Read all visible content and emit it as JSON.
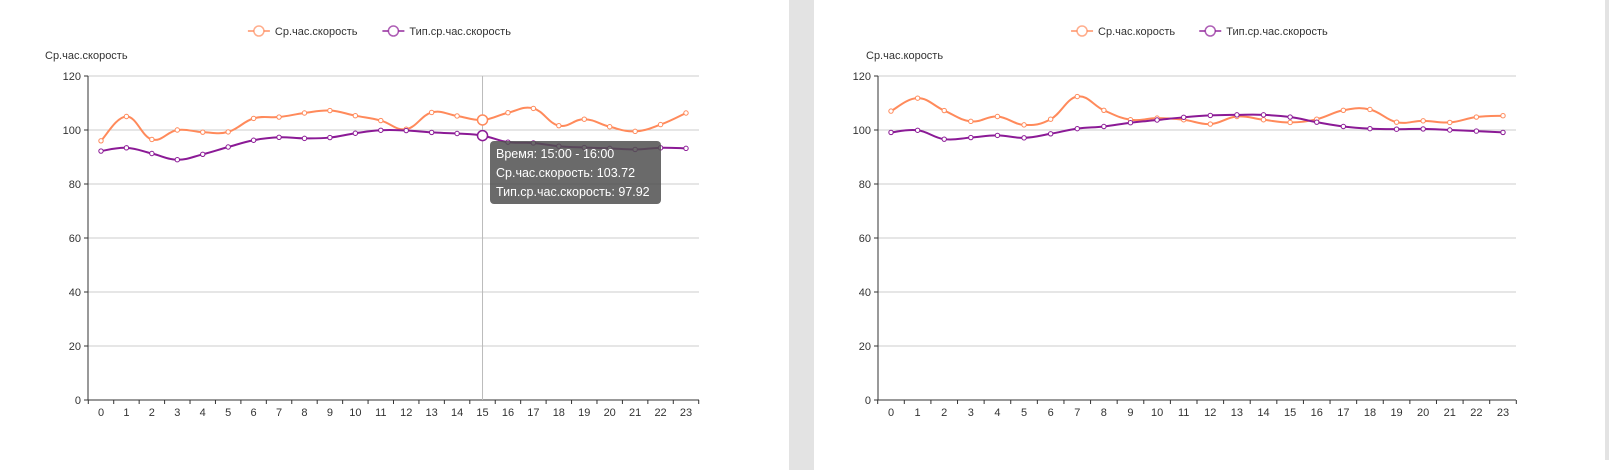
{
  "colors": {
    "series1": "#ff8a5b",
    "series2": "#8b1a96",
    "grid": "#cccccc",
    "tooltip_bg": "#505050"
  },
  "chart_data": [
    {
      "type": "line",
      "smooth": true,
      "legend": [
        "Ср.час.скорость",
        "Тип.ср.час.скорость"
      ],
      "legend_position": "top-center",
      "ylabel": "Ср.час.скорость",
      "ylim": [
        0,
        120
      ],
      "yticks": [
        "0",
        "20",
        "40",
        "60",
        "80",
        "100",
        "120"
      ],
      "categories": [
        "0",
        "1",
        "2",
        "3",
        "4",
        "5",
        "6",
        "7",
        "8",
        "9",
        "10",
        "11",
        "12",
        "13",
        "14",
        "15",
        "16",
        "17",
        "18",
        "19",
        "20",
        "21",
        "22",
        "23"
      ],
      "grid": true,
      "series": [
        {
          "name": "Ср.час.скорость",
          "values": [
            96,
            105,
            96.5,
            100,
            99.2,
            99.3,
            104.3,
            104.8,
            106.3,
            107.2,
            105.3,
            103.5,
            100.3,
            106.5,
            105.2,
            103.72,
            106.4,
            108,
            101.6,
            104,
            101.2,
            99.5,
            102,
            106.3
          ]
        },
        {
          "name": "Тип.ср.час.скорость",
          "values": [
            92.2,
            93.4,
            91.3,
            89,
            91,
            93.7,
            96.2,
            97.3,
            96.9,
            97.2,
            98.8,
            99.9,
            99.8,
            99.1,
            98.7,
            97.92,
            95.5,
            95.2,
            94,
            93.5,
            93.2,
            92.8,
            93.4,
            93.2
          ]
        }
      ],
      "hover_index": 15,
      "tooltip": {
        "line1": "Время: 15:00 - 16:00",
        "line2": "Ср.час.скорость: 103.72",
        "line3": "Тип.ср.час.скорость: 97.92"
      }
    },
    {
      "type": "line",
      "smooth": true,
      "legend": [
        "Ср.час.корость",
        "Тип.ср.час.скорость"
      ],
      "legend_position": "top-center",
      "ylabel": "Ср.час.корость",
      "ylim": [
        0,
        120
      ],
      "yticks": [
        "0",
        "20",
        "40",
        "60",
        "80",
        "100",
        "120"
      ],
      "categories": [
        "0",
        "1",
        "2",
        "3",
        "4",
        "5",
        "6",
        "7",
        "8",
        "9",
        "10",
        "11",
        "12",
        "13",
        "14",
        "15",
        "16",
        "17",
        "18",
        "19",
        "20",
        "21",
        "22",
        "23"
      ],
      "grid": true,
      "series": [
        {
          "name": "Ср.час.корость",
          "values": [
            107,
            111.8,
            107.2,
            103.2,
            105,
            101.9,
            104,
            112.4,
            107.3,
            103.8,
            104.4,
            103.8,
            102.2,
            105,
            103.8,
            102.8,
            104,
            107.3,
            107.6,
            102.9,
            103.4,
            102.8,
            104.8,
            105.3
          ]
        },
        {
          "name": "Тип.ср.час.скорость",
          "values": [
            99.1,
            99.9,
            96.6,
            97.2,
            98,
            97.1,
            98.6,
            100.5,
            101.3,
            102.7,
            103.7,
            104.7,
            105.4,
            105.6,
            105.6,
            104.8,
            102.9,
            101.3,
            100.5,
            100.3,
            100.4,
            100,
            99.6,
            99.1
          ]
        }
      ]
    }
  ]
}
